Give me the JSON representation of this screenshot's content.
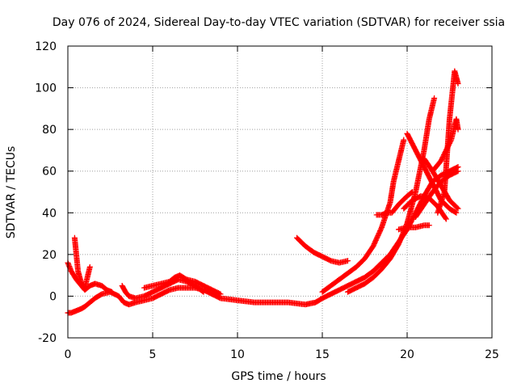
{
  "chart_data": {
    "type": "scatter",
    "title": "Day 076 of 2024, Sidereal Day-to-day VTEC variation (SDTVAR) for receiver ssia",
    "xlabel": "GPS time / hours",
    "ylabel": "SDTVAR / TECUs",
    "xlim": [
      0,
      25
    ],
    "ylim": [
      -20,
      120
    ],
    "xticks": [
      0,
      5,
      10,
      15,
      20,
      25
    ],
    "yticks": [
      -20,
      0,
      20,
      40,
      60,
      80,
      100,
      120
    ],
    "grid": true,
    "marker": "+",
    "color": "#ff0000",
    "series": [
      {
        "x": [
          0.0,
          0.2,
          0.5,
          0.8,
          1.0,
          1.3,
          1.6,
          2.0,
          2.5,
          3.0,
          3.3,
          3.6,
          4.0,
          4.5,
          5.0,
          5.5,
          6.0,
          6.5,
          7.0,
          7.5,
          8.0,
          8.5,
          9.0,
          10.0,
          11.0,
          12.0,
          13.0,
          14.0,
          14.6,
          15.0,
          15.5,
          16.0,
          16.5,
          17.0,
          17.5,
          18.0,
          18.5,
          19.0,
          19.5,
          20.0,
          20.5,
          21.0,
          21.5,
          22.0,
          22.5,
          23.0
        ],
        "y": [
          -8,
          -8,
          -7,
          -6,
          -5,
          -3,
          -1,
          1,
          2,
          0,
          -3,
          -4,
          -3,
          -2,
          -1,
          1,
          3,
          4,
          4,
          4,
          3,
          1,
          -1,
          -2,
          -3,
          -3,
          -3,
          -4,
          -3,
          -1,
          1,
          3,
          5,
          7,
          9,
          12,
          16,
          20,
          26,
          32,
          40,
          48,
          55,
          58,
          60,
          62
        ]
      },
      {
        "x": [
          0.0,
          0.2,
          0.5,
          0.8,
          1.0,
          1.3,
          1.6,
          2.0,
          2.3,
          2.6
        ],
        "y": [
          16,
          12,
          8,
          5,
          3,
          5,
          6,
          5,
          3,
          2
        ]
      },
      {
        "x": [
          0.4,
          0.5,
          0.6,
          0.8,
          1.0,
          1.3
        ],
        "y": [
          28,
          20,
          12,
          6,
          4,
          14
        ]
      },
      {
        "x": [
          3.2,
          3.4,
          3.6,
          4.0,
          4.5,
          5.0,
          5.5,
          6.0,
          6.5,
          7.0,
          7.5,
          8.0
        ],
        "y": [
          5,
          2,
          0,
          -1,
          0,
          2,
          4,
          6,
          8,
          7,
          5,
          2
        ]
      },
      {
        "x": [
          4.5,
          5.0,
          5.5,
          6.0,
          6.3,
          6.6,
          7.0,
          7.5,
          8.0,
          8.5,
          9.0
        ],
        "y": [
          4,
          5,
          6,
          7,
          9,
          10,
          8,
          7,
          5,
          3,
          1
        ]
      },
      {
        "x": [
          13.5,
          14.0,
          14.5,
          15.0,
          15.5,
          16.0,
          16.5
        ],
        "y": [
          28,
          24,
          21,
          19,
          17,
          16,
          17
        ]
      },
      {
        "x": [
          15.0,
          15.5,
          16.0,
          16.5,
          17.0,
          17.5,
          18.0,
          18.5,
          19.0,
          19.2,
          19.5,
          19.8
        ],
        "y": [
          2,
          5,
          8,
          11,
          14,
          18,
          24,
          33,
          45,
          55,
          65,
          75
        ]
      },
      {
        "x": [
          16.5,
          17.0,
          17.5,
          18.0,
          18.5,
          19.0,
          19.5,
          20.0,
          20.5,
          21.0,
          21.3,
          21.6
        ],
        "y": [
          2,
          4,
          6,
          9,
          13,
          18,
          25,
          35,
          50,
          70,
          85,
          95
        ]
      },
      {
        "x": [
          18.2,
          18.5,
          18.8,
          19.1,
          19.5,
          20.0,
          20.3
        ],
        "y": [
          39,
          39,
          40,
          40,
          44,
          48,
          50
        ]
      },
      {
        "x": [
          20.0,
          20.5,
          21.0,
          21.5,
          22.0,
          22.5,
          22.9
        ],
        "y": [
          78,
          70,
          62,
          54,
          46,
          42,
          40
        ]
      },
      {
        "x": [
          19.5,
          20.0,
          20.5,
          21.0,
          21.3
        ],
        "y": [
          32,
          33,
          33,
          34,
          34
        ]
      },
      {
        "x": [
          19.8,
          20.3,
          20.8,
          21.3,
          21.8,
          22.3
        ],
        "y": [
          42,
          46,
          48,
          47,
          43,
          37
        ]
      },
      {
        "x": [
          21.0,
          21.5,
          22.0,
          22.5,
          23.0
        ],
        "y": [
          66,
          60,
          53,
          46,
          42
        ]
      },
      {
        "x": [
          21.5,
          22.0,
          22.3,
          22.6,
          22.9,
          23.0
        ],
        "y": [
          60,
          65,
          70,
          75,
          85,
          80
        ]
      },
      {
        "x": [
          21.8,
          22.2,
          22.5,
          22.8,
          23.0
        ],
        "y": [
          40,
          50,
          85,
          108,
          102
        ]
      },
      {
        "x": [
          20.5,
          21.0,
          21.5,
          22.0,
          22.5,
          23.0
        ],
        "y": [
          38,
          44,
          50,
          55,
          58,
          60
        ]
      }
    ]
  }
}
